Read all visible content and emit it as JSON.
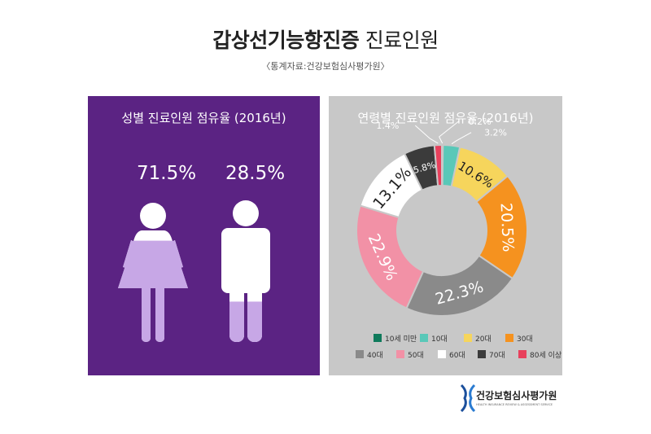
{
  "header": {
    "title_bold": "갑상선기능항진증",
    "title_rest": "진료인원",
    "source": "〈통계자료:건강보험심사평가원〉"
  },
  "colors": {
    "left_bg": "#5b2383",
    "right_bg": "#c8c8c8",
    "female_fill": "#c7a7e6",
    "teen0": "#0f7a5b",
    "teen10": "#59c8b8",
    "age20": "#f6d55c",
    "age30": "#f5921f",
    "age40": "#8a8a8a",
    "age50": "#f291a6",
    "age60": "#ffffff",
    "age70": "#3b3b3b",
    "age80": "#e8405c"
  },
  "chart_data": [
    {
      "type": "bar",
      "title": "성별 진료인원 점유율 (2016년)",
      "categories": [
        "여성",
        "남성"
      ],
      "values": [
        71.5,
        28.5
      ],
      "labels": [
        "71.5%",
        "28.5%"
      ],
      "icons": [
        "female-icon",
        "male-icon"
      ],
      "ylim": [
        0,
        100
      ]
    },
    {
      "type": "pie",
      "title": "연령별 진료인원 점유율 (2016년)",
      "donut": true,
      "slices": [
        {
          "name": "10세 미만",
          "value": 0.2,
          "label": "0.2%",
          "color": "#0f7a5b"
        },
        {
          "name": "10대",
          "value": 3.2,
          "label": "3.2%",
          "color": "#59c8b8"
        },
        {
          "name": "20대",
          "value": 10.6,
          "label": "10.6%",
          "color": "#f6d55c"
        },
        {
          "name": "30대",
          "value": 20.5,
          "label": "20.5%",
          "color": "#f5921f"
        },
        {
          "name": "40대",
          "value": 22.3,
          "label": "22.3%",
          "color": "#8a8a8a"
        },
        {
          "name": "50대",
          "value": 22.9,
          "label": "22.9%",
          "color": "#f291a6"
        },
        {
          "name": "60대",
          "value": 13.1,
          "label": "13.1%",
          "color": "#ffffff"
        },
        {
          "name": "70대",
          "value": 5.8,
          "label": "5.8%",
          "color": "#3b3b3b"
        },
        {
          "name": "80세 이상",
          "value": 1.4,
          "label": "1.4%",
          "color": "#e8405c"
        }
      ],
      "legend_position": "bottom"
    }
  ],
  "logo": {
    "name": "건강보험심사평가원",
    "subtitle": "HEALTH INSURANCE REVIEW & ASSESSMENT SERVICE"
  }
}
